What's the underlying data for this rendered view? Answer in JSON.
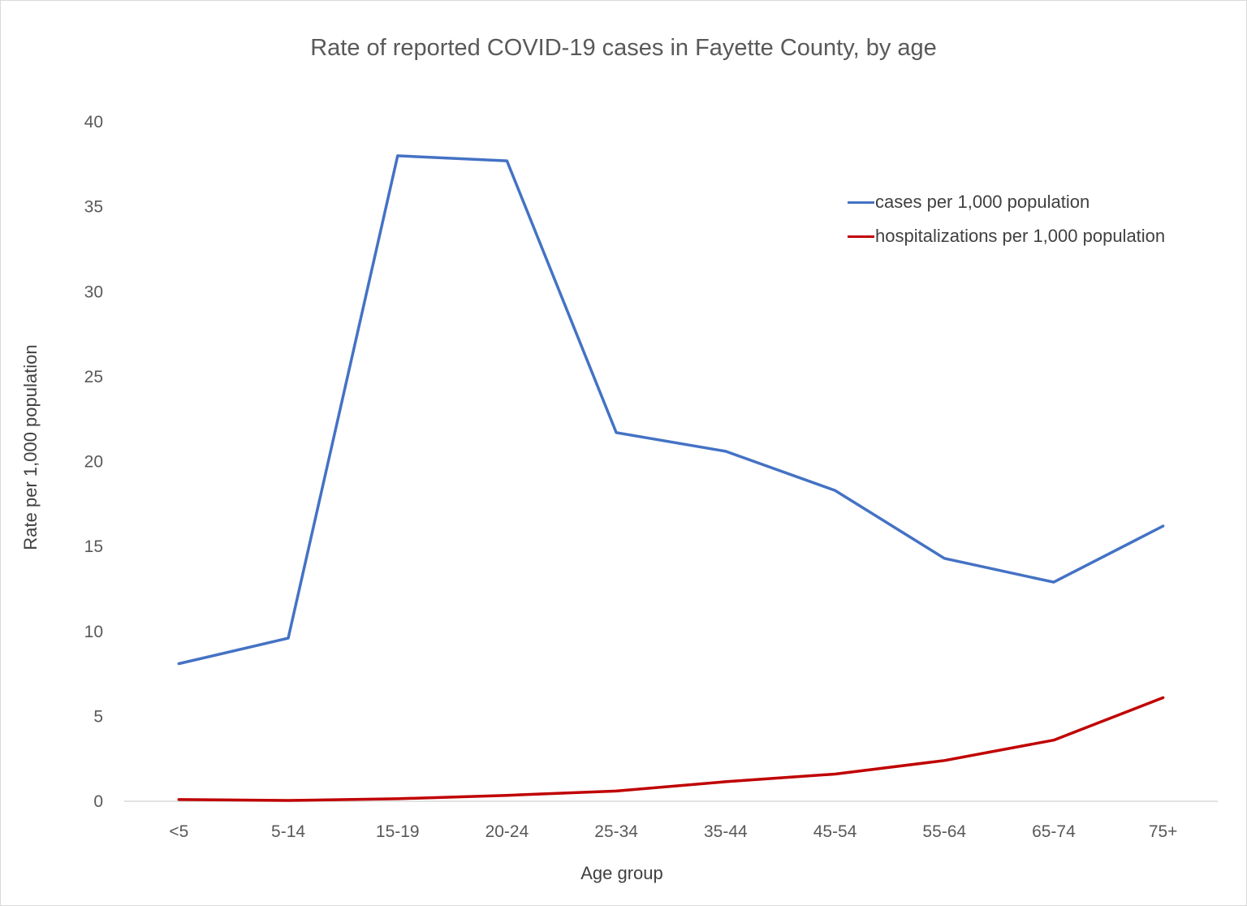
{
  "chart_data": {
    "type": "line",
    "title": "Rate of reported COVID-19 cases in Fayette County, by age",
    "xlabel": "Age group",
    "ylabel": "Rate per 1,000 population",
    "categories": [
      "<5",
      "5-14",
      "15-19",
      "20-24",
      "25-34",
      "35-44",
      "45-54",
      "55-64",
      "65-74",
      "75+"
    ],
    "ylim": [
      0,
      40
    ],
    "yticks": [
      "0",
      "5",
      "10",
      "15",
      "20",
      "25",
      "30",
      "35",
      "40"
    ],
    "grid": false,
    "legend_position": "top-right",
    "series": [
      {
        "name": "cases per 1,000 population",
        "color": "#4472c4",
        "values": [
          8.1,
          9.6,
          38.0,
          37.7,
          21.7,
          20.6,
          18.3,
          14.3,
          12.9,
          16.2
        ]
      },
      {
        "name": "hospitalizations per 1,000 population",
        "color": "#c00000",
        "values": [
          0.1,
          0.05,
          0.15,
          0.35,
          0.6,
          1.15,
          1.6,
          2.4,
          3.6,
          6.1
        ]
      }
    ]
  }
}
